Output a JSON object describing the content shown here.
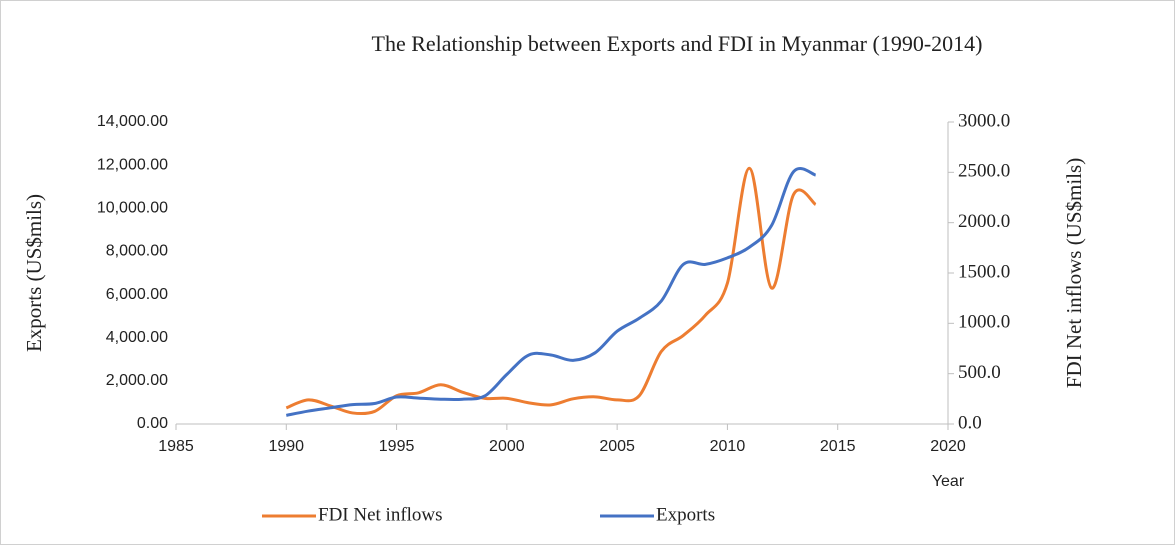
{
  "chart_data": {
    "type": "line",
    "title": "The Relationship between Exports and FDI in Myanmar (1990-2014)",
    "x_label": "Year",
    "y_label": "Exports (US$mils)",
    "y2_label": "FDI Net inflows (US$mils)",
    "x": [
      1990,
      1991,
      1992,
      1993,
      1994,
      1995,
      1996,
      1997,
      1998,
      1999,
      2000,
      2001,
      2002,
      2003,
      2004,
      2005,
      2006,
      2007,
      2008,
      2009,
      2010,
      2011,
      2012,
      2013,
      2014
    ],
    "series": [
      {
        "name": "FDI Net inflows",
        "color": "#ed7d31",
        "axis": "y2",
        "values": [
          160,
          240,
          180,
          110,
          125,
          280,
          310,
          390,
          315,
          255,
          255,
          210,
          190,
          250,
          270,
          240,
          280,
          720,
          880,
          1080,
          1400,
          2540,
          1350,
          2280,
          2180
        ]
      },
      {
        "name": "Exports",
        "color": "#4472c4",
        "values": [
          400,
          600,
          750,
          900,
          950,
          1250,
          1200,
          1150,
          1150,
          1300,
          2300,
          3200,
          3200,
          2950,
          3300,
          4300,
          4900,
          5700,
          7400,
          7400,
          7700,
          8200,
          9200,
          11700,
          11540
        ]
      }
    ],
    "xlim": [
      1985,
      2020
    ],
    "xticks": [
      1985,
      1990,
      1995,
      2000,
      2005,
      2010,
      2015,
      2020
    ],
    "ylim": [
      0,
      14000
    ],
    "yticks": [
      {
        "value": 0,
        "label": "0.00"
      },
      {
        "value": 2000,
        "label": "2,000.00"
      },
      {
        "value": 4000,
        "label": "4,000.00"
      },
      {
        "value": 6000,
        "label": "6,000.00"
      },
      {
        "value": 8000,
        "label": "8,000.00"
      },
      {
        "value": 10000,
        "label": "10,000.00"
      },
      {
        "value": 12000,
        "label": "12,000.00"
      },
      {
        "value": 14000,
        "label": "14,000.00"
      }
    ],
    "y2lim": [
      0,
      3000
    ],
    "y2ticks": [
      {
        "value": 0,
        "label": "0.0"
      },
      {
        "value": 500,
        "label": "500.0"
      },
      {
        "value": 1000,
        "label": "1000.0"
      },
      {
        "value": 1500,
        "label": "1500.0"
      },
      {
        "value": 2000,
        "label": "2000.0"
      },
      {
        "value": 2500,
        "label": "2500.0"
      },
      {
        "value": 3000,
        "label": "3000.0"
      }
    ],
    "grid": false,
    "smooth": true,
    "legend": "bottom"
  }
}
